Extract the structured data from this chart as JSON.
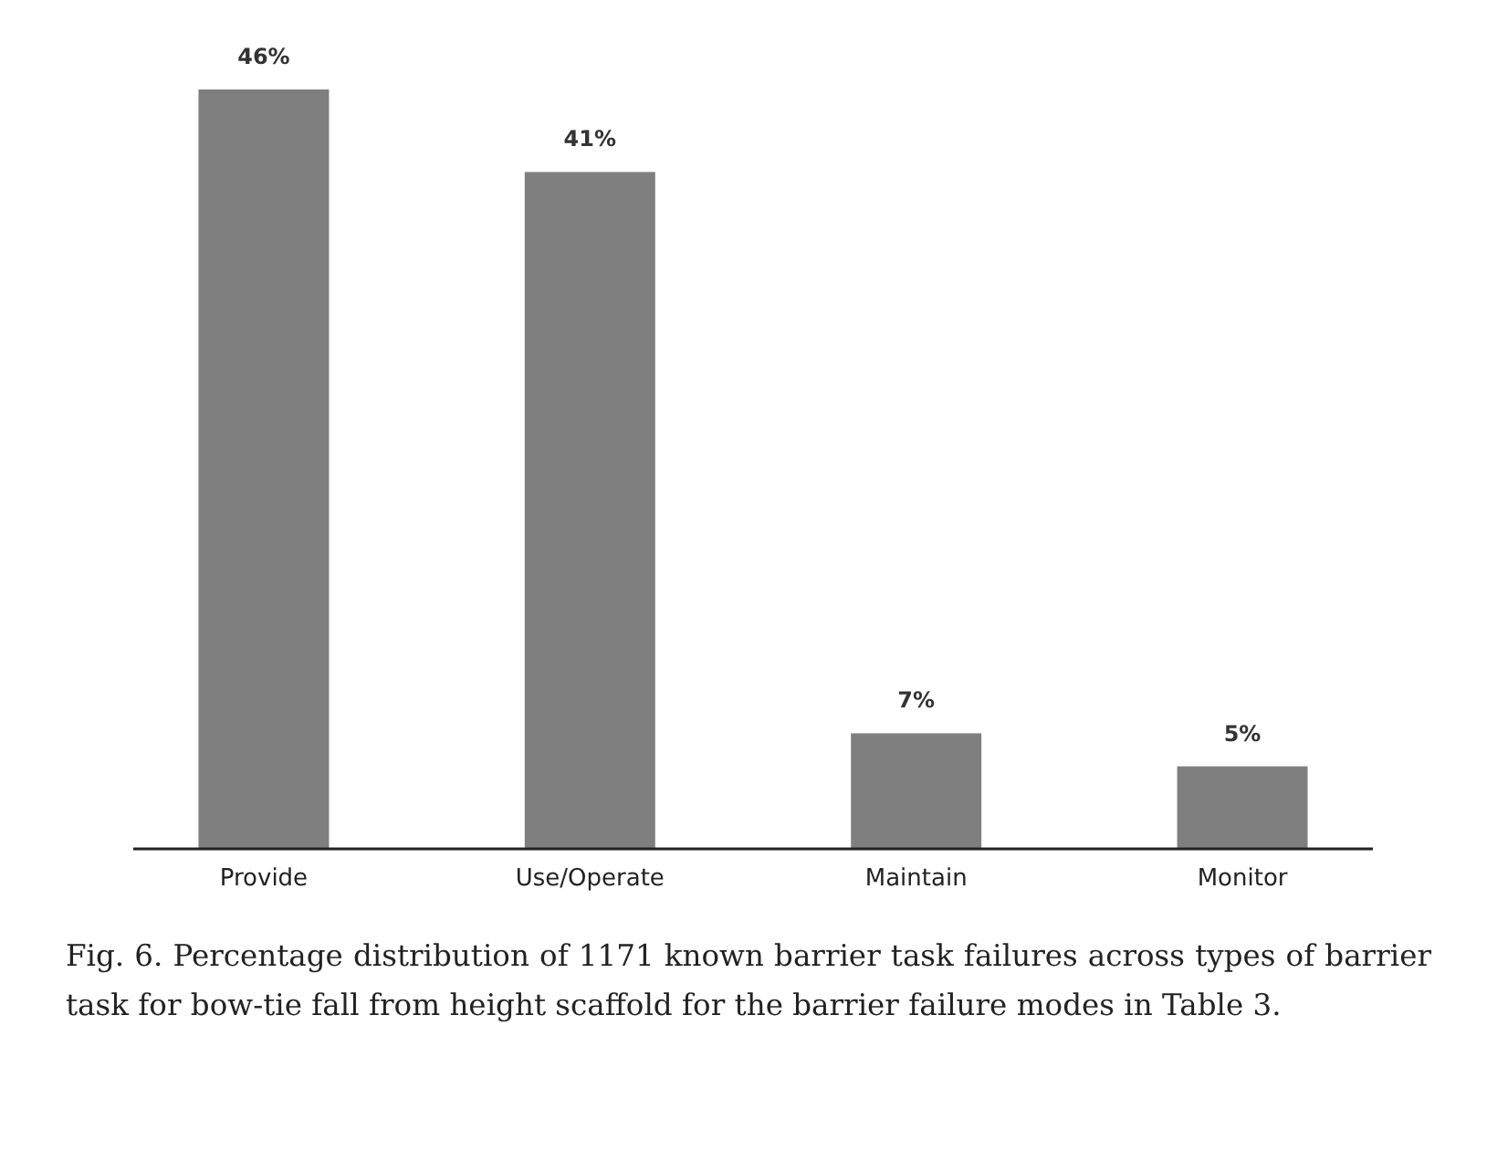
{
  "chart_data": {
    "type": "bar",
    "categories": [
      "Provide",
      "Use/Operate",
      "Maintain",
      "Monitor"
    ],
    "values": [
      46,
      41,
      7,
      5
    ],
    "value_labels": [
      "46%",
      "41%",
      "7%",
      "5%"
    ],
    "color": "#7f7f7f",
    "annotations": [
      "Fig. 6. Percentage distribution of 1171 known barrier task failures across types of barrier task for bow-tie fall from height scaffold for the barrier failure modes in Table 3."
    ]
  }
}
